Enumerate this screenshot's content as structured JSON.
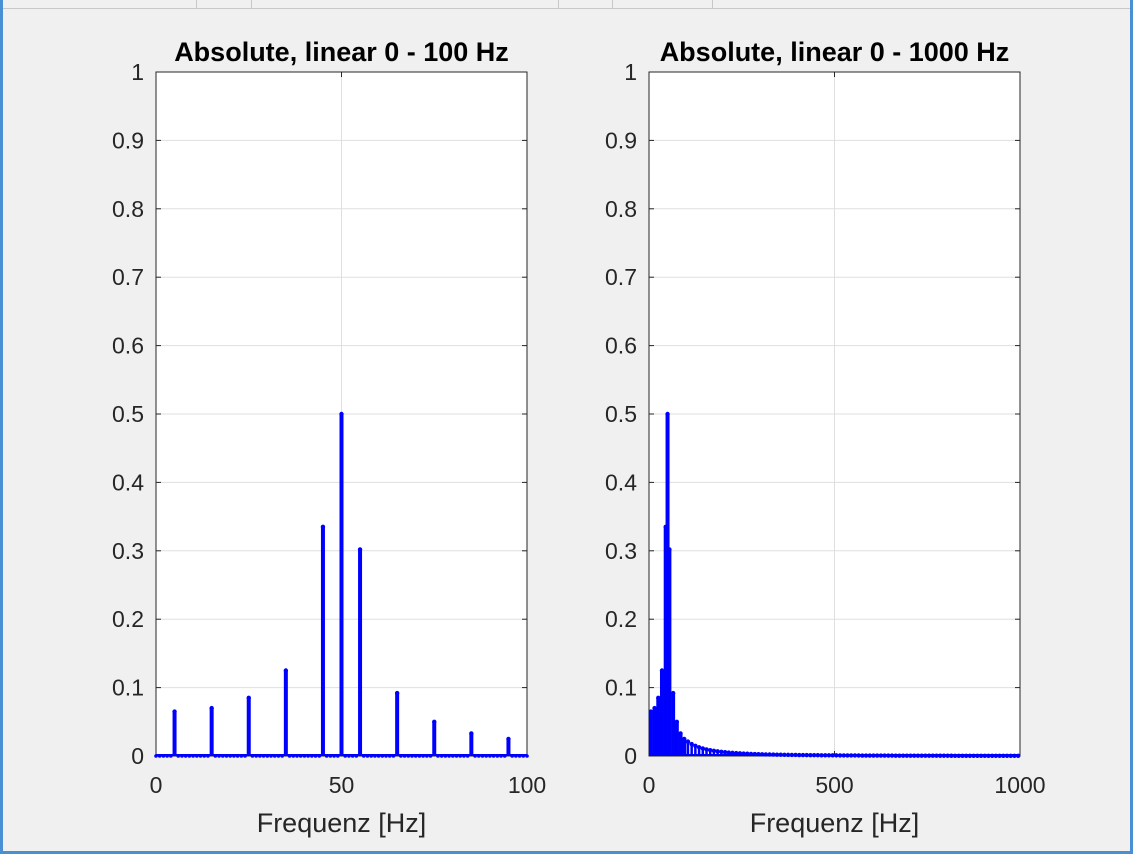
{
  "window": {
    "background": "#f0f0f0",
    "accent": "#4a8fd4"
  },
  "chart_data": [
    {
      "type": "stem",
      "title": "Absolute, linear 0 - 100 Hz",
      "xlabel": "Frequenz [Hz]",
      "ylabel": "",
      "xlim": [
        0,
        100
      ],
      "ylim": [
        0,
        1
      ],
      "xticks": [
        0,
        50,
        100
      ],
      "xtick_labels": [
        "0",
        "50",
        "100"
      ],
      "yticks": [
        0,
        0.1,
        0.2,
        0.3,
        0.4,
        0.5,
        0.6,
        0.7,
        0.8,
        0.9,
        1
      ],
      "ytick_labels": [
        "0",
        "0.1",
        "0.2",
        "0.3",
        "0.4",
        "0.5",
        "0.6",
        "0.7",
        "0.8",
        "0.9",
        "1"
      ],
      "grid": true,
      "color": "#0000ff",
      "x": [
        5,
        15,
        25,
        35,
        45,
        50,
        55,
        65,
        75,
        85,
        95
      ],
      "y": [
        0.065,
        0.07,
        0.085,
        0.125,
        0.335,
        0.5,
        0.302,
        0.092,
        0.05,
        0.033,
        0.025
      ],
      "zero_stem_spacing": 1
    },
    {
      "type": "stem",
      "title": "Absolute, linear 0 - 1000 Hz",
      "xlabel": "Frequenz [Hz]",
      "ylabel": "",
      "xlim": [
        0,
        1000
      ],
      "ylim": [
        0,
        1
      ],
      "xticks": [
        0,
        500,
        1000
      ],
      "xtick_labels": [
        "0",
        "500",
        "1000"
      ],
      "yticks": [
        0,
        0.1,
        0.2,
        0.3,
        0.4,
        0.5,
        0.6,
        0.7,
        0.8,
        0.9,
        1
      ],
      "ytick_labels": [
        "0",
        "0.1",
        "0.2",
        "0.3",
        "0.4",
        "0.5",
        "0.6",
        "0.7",
        "0.8",
        "0.9",
        "1"
      ],
      "grid": true,
      "color": "#0000ff",
      "x": [
        5,
        15,
        25,
        35,
        45,
        50,
        55,
        65,
        75,
        85,
        95
      ],
      "y": [
        0.065,
        0.07,
        0.085,
        0.125,
        0.335,
        0.5,
        0.302,
        0.092,
        0.05,
        0.033,
        0.025
      ],
      "tail": {
        "x_start": 105,
        "x_end": 1000,
        "step": 10,
        "amplitude_at_start": 0.021,
        "decay_exponent": 2
      }
    }
  ]
}
